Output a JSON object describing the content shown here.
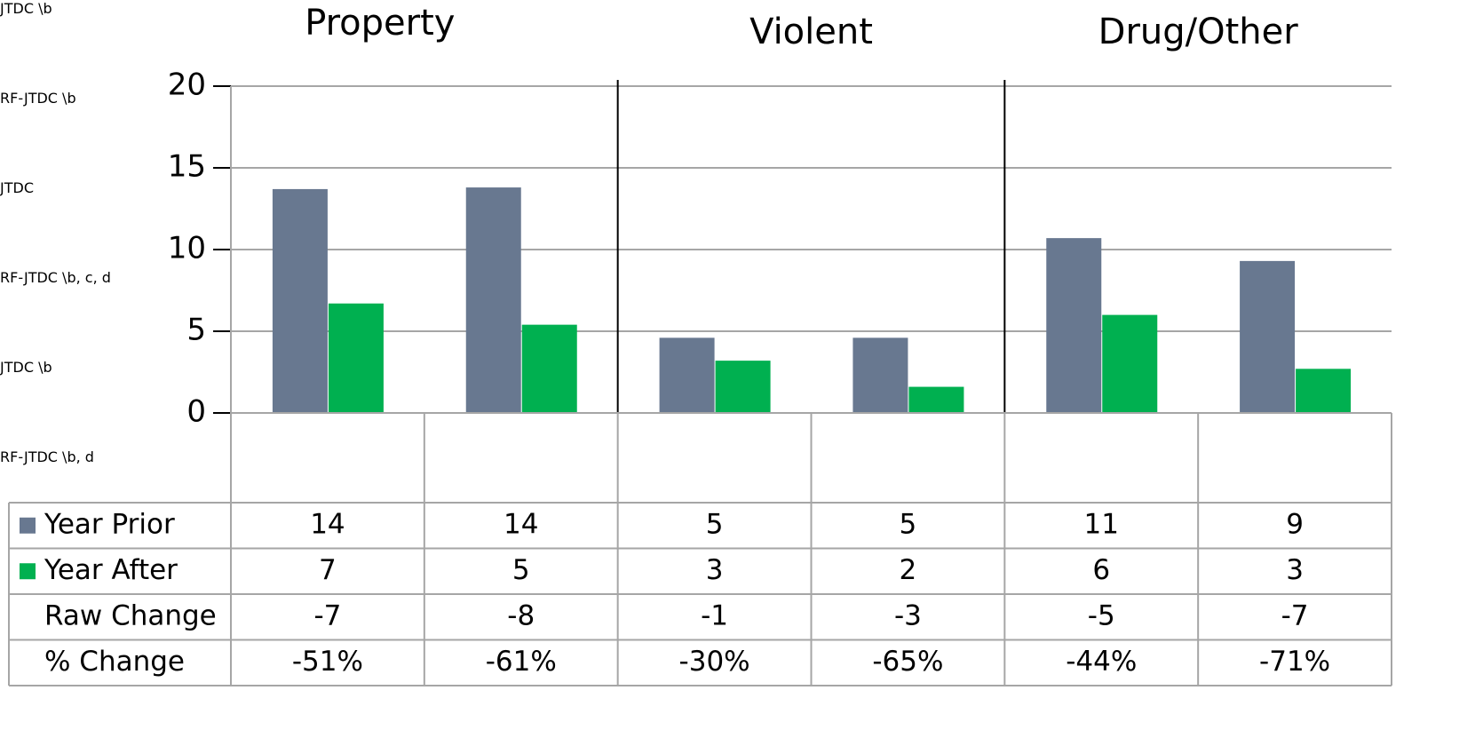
{
  "chart_data": {
    "type": "bar",
    "groups": [
      "Property",
      "Violent",
      "Drug/Other"
    ],
    "categories": [
      "JTDC\n\\b",
      "RF-JTDC\n\\b",
      "JTDC",
      "RF-JTDC\n\\b, c, d",
      "JTDC\n\\b",
      "RF-JTDC\n\\b, d"
    ],
    "series": [
      {
        "name": "Year Prior",
        "color": "#687890",
        "values": [
          13.7,
          13.8,
          4.6,
          4.6,
          10.7,
          9.3
        ],
        "value_labels": [
          "14",
          "14",
          "5",
          "5",
          "11",
          "9"
        ]
      },
      {
        "name": "Year After",
        "color": "#00b050",
        "values": [
          6.7,
          5.4,
          3.2,
          1.6,
          6.0,
          2.7
        ],
        "value_labels": [
          "7",
          "5",
          "3",
          "2",
          "6",
          "3"
        ]
      }
    ],
    "table_rows": [
      {
        "name": "Raw Change",
        "values": [
          -7,
          -8,
          -1,
          -3,
          -5,
          -7
        ]
      },
      {
        "name": "% Change",
        "values": [
          -51,
          -61,
          -30,
          -65,
          -44,
          -71
        ],
        "value_labels": [
          "-51%",
          "-61%",
          "-30%",
          "-65%",
          "-44%",
          "-71%"
        ]
      }
    ],
    "ylim": [
      0,
      20
    ],
    "yticks": [
      0,
      5,
      10,
      15,
      20
    ],
    "grid": true
  }
}
